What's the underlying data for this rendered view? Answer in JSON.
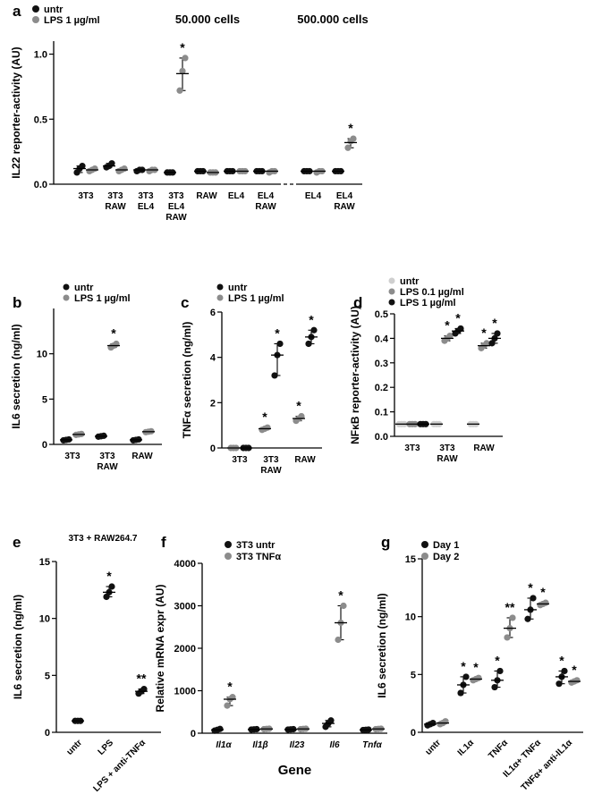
{
  "colors": {
    "black": "#111111",
    "gray": "#8c8c8c",
    "lightgray": "#cfcfcf"
  },
  "chart_data": [
    {
      "id": "a",
      "panel_label": "a",
      "type": "scatter",
      "ylabel": "IL22 reporter-activity (AU)",
      "ylim": [
        0,
        1.1
      ],
      "yticks": [
        "0.0",
        "0.5",
        "1.0"
      ],
      "ytick_values": [
        0,
        0.5,
        1.0
      ],
      "headers": [
        "50.000 cells",
        "500.000 cells"
      ],
      "categories": [
        [
          "3T3"
        ],
        [
          "3T3",
          "RAW"
        ],
        [
          "3T3",
          "EL4"
        ],
        [
          "3T3",
          "EL4",
          "RAW"
        ],
        [
          "RAW"
        ],
        [
          "EL4"
        ],
        [
          "EL4",
          "RAW"
        ],
        [
          "EL4"
        ],
        [
          "EL4",
          "RAW"
        ]
      ],
      "legend": [
        {
          "label": "untr",
          "color": "black"
        },
        {
          "label": "LPS 1 µg/ml",
          "color": "gray"
        }
      ],
      "series": [
        {
          "name": "untr",
          "color": "black",
          "values": [
            0.12,
            0.14,
            0.11,
            0.09,
            0.1,
            0.1,
            0.1,
            0.1,
            0.1
          ],
          "points": [
            [
              0.09,
              0.12,
              0.14
            ],
            [
              0.13,
              0.14,
              0.16
            ],
            [
              0.1,
              0.11,
              0.11
            ],
            [
              0.09,
              0.09,
              0.09
            ],
            [
              0.1,
              0.1,
              0.1
            ],
            [
              0.1,
              0.1,
              0.1
            ],
            [
              0.1,
              0.1,
              0.1
            ],
            [
              0.1,
              0.1,
              0.1
            ],
            [
              0.1,
              0.1,
              0.1
            ]
          ]
        },
        {
          "name": "LPS 1 µg/ml",
          "color": "gray",
          "values": [
            0.11,
            0.11,
            0.11,
            0.85,
            0.09,
            0.1,
            0.1,
            0.1,
            0.32
          ],
          "points": [
            [
              0.1,
              0.11,
              0.12
            ],
            [
              0.1,
              0.11,
              0.12
            ],
            [
              0.1,
              0.11,
              0.11
            ],
            [
              0.72,
              0.87,
              0.97
            ],
            [
              0.09,
              0.09,
              0.09
            ],
            [
              0.1,
              0.1,
              0.1
            ],
            [
              0.09,
              0.1,
              0.1
            ],
            [
              0.09,
              0.1,
              0.1
            ],
            [
              0.28,
              0.33,
              0.35
            ]
          ]
        }
      ],
      "stars": [
        {
          "cat": 3,
          "series": 1,
          "text": "*"
        },
        {
          "cat": 8,
          "series": 1,
          "text": "*"
        }
      ]
    },
    {
      "id": "b",
      "panel_label": "b",
      "type": "scatter",
      "ylabel": "IL6 secretion (ng/ml)",
      "ylim": [
        0,
        15
      ],
      "yticks": [
        "0",
        "5",
        "10"
      ],
      "ytick_values": [
        0,
        5,
        10
      ],
      "categories": [
        [
          "3T3"
        ],
        [
          "3T3",
          "RAW"
        ],
        [
          "RAW"
        ]
      ],
      "legend": [
        {
          "label": "untr",
          "color": "black"
        },
        {
          "label": "LPS 1 µg/ml",
          "color": "gray"
        }
      ],
      "series": [
        {
          "name": "untr",
          "color": "black",
          "values": [
            0.5,
            0.9,
            0.5
          ],
          "points": [
            [
              0.45,
              0.5,
              0.55
            ],
            [
              0.85,
              0.9,
              0.95
            ],
            [
              0.45,
              0.5,
              0.55
            ]
          ]
        },
        {
          "name": "LPS 1 µg/ml",
          "color": "gray",
          "values": [
            1.1,
            10.9,
            1.4
          ],
          "points": [
            [
              1.05,
              1.1,
              1.15
            ],
            [
              10.7,
              10.9,
              11.1
            ],
            [
              1.35,
              1.4,
              1.45
            ]
          ]
        }
      ],
      "stars": [
        {
          "cat": 1,
          "series": 1,
          "text": "*"
        }
      ]
    },
    {
      "id": "c",
      "panel_label": "c",
      "type": "scatter",
      "ylabel": "TNFα secretion (ng/ml)",
      "ylim": [
        0,
        6
      ],
      "yticks": [
        "0",
        "2",
        "4",
        "6"
      ],
      "ytick_values": [
        0,
        2,
        4,
        6
      ],
      "categories": [
        [
          "3T3"
        ],
        [
          "3T3",
          "RAW"
        ],
        [
          "RAW"
        ]
      ],
      "legend": [
        {
          "label": "untr",
          "color": "black"
        },
        {
          "label": "LPS 1 µg/ml",
          "color": "gray"
        }
      ],
      "series": [
        {
          "name": "LPS 1 µg/ml",
          "color": "gray",
          "values": [
            0.0,
            0.85,
            1.3
          ],
          "points": [
            [
              0,
              0,
              0
            ],
            [
              0.8,
              0.85,
              0.9
            ],
            [
              1.2,
              1.3,
              1.4
            ]
          ]
        },
        {
          "name": "untr",
          "color": "black",
          "values": [
            0.0,
            4.1,
            4.9
          ],
          "points": [
            [
              0,
              0,
              0
            ],
            [
              3.2,
              4.1,
              4.6
            ],
            [
              4.6,
              4.9,
              5.2
            ]
          ]
        }
      ],
      "stars": [
        {
          "cat": 1,
          "series": 0,
          "text": "*"
        },
        {
          "cat": 1,
          "series": 1,
          "text": "*"
        },
        {
          "cat": 2,
          "series": 0,
          "text": "*"
        },
        {
          "cat": 2,
          "series": 1,
          "text": "*"
        }
      ]
    },
    {
      "id": "d",
      "panel_label": "d",
      "type": "scatter",
      "ylabel": "NFκB reporter-activity (AU)",
      "ylim": [
        0,
        0.5
      ],
      "yticks": [
        "0.0",
        "0.1",
        "0.2",
        "0.3",
        "0.4",
        "0.5"
      ],
      "ytick_values": [
        0,
        0.1,
        0.2,
        0.3,
        0.4,
        0.5
      ],
      "categories": [
        [
          "3T3"
        ],
        [
          "3T3",
          "RAW"
        ],
        [
          "RAW"
        ]
      ],
      "legend": [
        {
          "label": "untr",
          "color": "lightgray"
        },
        {
          "label": "LPS 0.1 µg/ml",
          "color": "gray"
        },
        {
          "label": "LPS 1 µg/ml",
          "color": "black"
        }
      ],
      "series": [
        {
          "name": "untr",
          "color": "lightgray",
          "values": [
            0.05,
            0.05,
            0.05
          ],
          "points": [
            [
              0.05,
              0.05,
              0.05
            ],
            [
              0.05,
              0.05,
              0.05
            ],
            [
              0.05,
              0.05,
              0.05
            ]
          ]
        },
        {
          "name": "LPS 0.1 µg/ml",
          "color": "gray",
          "values": [
            0.05,
            0.4,
            0.37
          ],
          "points": [
            [
              0.05,
              0.05,
              0.05
            ],
            [
              0.39,
              0.4,
              0.41
            ],
            [
              0.36,
              0.37,
              0.38
            ]
          ]
        },
        {
          "name": "LPS 1 µg/ml",
          "color": "black",
          "values": [
            0.05,
            0.43,
            0.4
          ],
          "points": [
            [
              0.05,
              0.05,
              0.05
            ],
            [
              0.42,
              0.43,
              0.44
            ],
            [
              0.38,
              0.4,
              0.42
            ]
          ]
        }
      ],
      "stars": [
        {
          "cat": 1,
          "series": 1,
          "text": "*"
        },
        {
          "cat": 1,
          "series": 2,
          "text": "*"
        },
        {
          "cat": 2,
          "series": 1,
          "text": "*"
        },
        {
          "cat": 2,
          "series": 2,
          "text": "*"
        }
      ]
    },
    {
      "id": "e",
      "panel_label": "e",
      "type": "scatter",
      "title": "3T3 + RAW264.7",
      "ylabel": "IL6 secretion (ng/ml)",
      "ylim": [
        0,
        15
      ],
      "yticks": [
        "0",
        "5",
        "10",
        "15"
      ],
      "ytick_values": [
        0,
        5,
        10,
        15
      ],
      "categories": [
        "untr",
        "LPS",
        "LPS + anti-TNFα"
      ],
      "series": [
        {
          "name": "",
          "color": "black",
          "values": [
            1.0,
            12.3,
            3.6
          ],
          "points": [
            [
              1.0,
              1.0,
              1.0
            ],
            [
              11.9,
              12.3,
              12.8
            ],
            [
              3.4,
              3.6,
              3.8
            ]
          ]
        }
      ],
      "stars": [
        {
          "cat": 1,
          "series": 0,
          "text": "*"
        },
        {
          "cat": 2,
          "series": 0,
          "text": "**"
        }
      ]
    },
    {
      "id": "f",
      "panel_label": "f",
      "type": "scatter",
      "ylabel": "Relative mRNA expr (AU)",
      "xlabel": "Gene",
      "ylim": [
        0,
        4000
      ],
      "yticks": [
        "0",
        "1000",
        "2000",
        "3000",
        "4000"
      ],
      "ytick_values": [
        0,
        1000,
        2000,
        3000,
        4000
      ],
      "categories": [
        "Il1α",
        "Il1β",
        "Il23",
        "Il6",
        "Tnfα"
      ],
      "legend": [
        {
          "label": "3T3 untr",
          "color": "black"
        },
        {
          "label": "3T3 TNFα",
          "color": "gray"
        }
      ],
      "series": [
        {
          "name": "3T3 untr",
          "color": "black",
          "values": [
            80,
            90,
            90,
            230,
            80
          ],
          "points": [
            [
              60,
              80,
              100
            ],
            [
              85,
              90,
              95
            ],
            [
              85,
              90,
              95
            ],
            [
              150,
              230,
              300
            ],
            [
              75,
              80,
              85
            ]
          ]
        },
        {
          "name": "3T3 TNFα",
          "color": "gray",
          "values": [
            800,
            100,
            100,
            2600,
            100
          ],
          "points": [
            [
              650,
              800,
              850
            ],
            [
              95,
              100,
              105
            ],
            [
              95,
              100,
              105
            ],
            [
              2200,
              2600,
              3000
            ],
            [
              95,
              100,
              105
            ]
          ]
        }
      ],
      "stars": [
        {
          "cat": 0,
          "series": 1,
          "text": "*"
        },
        {
          "cat": 3,
          "series": 1,
          "text": "*"
        }
      ]
    },
    {
      "id": "g",
      "panel_label": "g",
      "type": "scatter",
      "ylabel": "IL6 secretion (ng/ml)",
      "ylim": [
        0,
        15
      ],
      "yticks": [
        "0",
        "5",
        "10",
        "15"
      ],
      "ytick_values": [
        0,
        5,
        10,
        15
      ],
      "categories": [
        "untr",
        "IL1α",
        "TNFα",
        "IL1α+ TNFα",
        "TNFα+ anti-IL1α"
      ],
      "legend": [
        {
          "label": "Day 1",
          "color": "black"
        },
        {
          "label": "Day 2",
          "color": "gray"
        }
      ],
      "series": [
        {
          "name": "Day 1",
          "color": "black",
          "values": [
            0.7,
            4.1,
            4.5,
            10.6,
            4.8
          ],
          "points": [
            [
              0.6,
              0.7,
              0.8
            ],
            [
              3.4,
              4.1,
              4.8
            ],
            [
              3.9,
              4.5,
              5.3
            ],
            [
              9.8,
              10.6,
              11.6
            ],
            [
              4.2,
              4.8,
              5.3
            ]
          ]
        },
        {
          "name": "Day 2",
          "color": "gray",
          "values": [
            0.8,
            4.6,
            9.0,
            11.1,
            4.4
          ],
          "points": [
            [
              0.7,
              0.8,
              0.95
            ],
            [
              4.5,
              4.6,
              4.7
            ],
            [
              8.2,
              9.0,
              9.9
            ],
            [
              11.0,
              11.1,
              11.2
            ],
            [
              4.3,
              4.4,
              4.5
            ]
          ]
        }
      ],
      "stars": [
        {
          "cat": 1,
          "series": 0,
          "text": "*"
        },
        {
          "cat": 1,
          "series": 1,
          "text": "*"
        },
        {
          "cat": 2,
          "series": 0,
          "text": "*"
        },
        {
          "cat": 2,
          "series": 1,
          "text": "**"
        },
        {
          "cat": 3,
          "series": 0,
          "text": "*"
        },
        {
          "cat": 3,
          "series": 1,
          "text": "*"
        },
        {
          "cat": 4,
          "series": 0,
          "text": "*"
        },
        {
          "cat": 4,
          "series": 1,
          "text": "*"
        }
      ]
    }
  ]
}
